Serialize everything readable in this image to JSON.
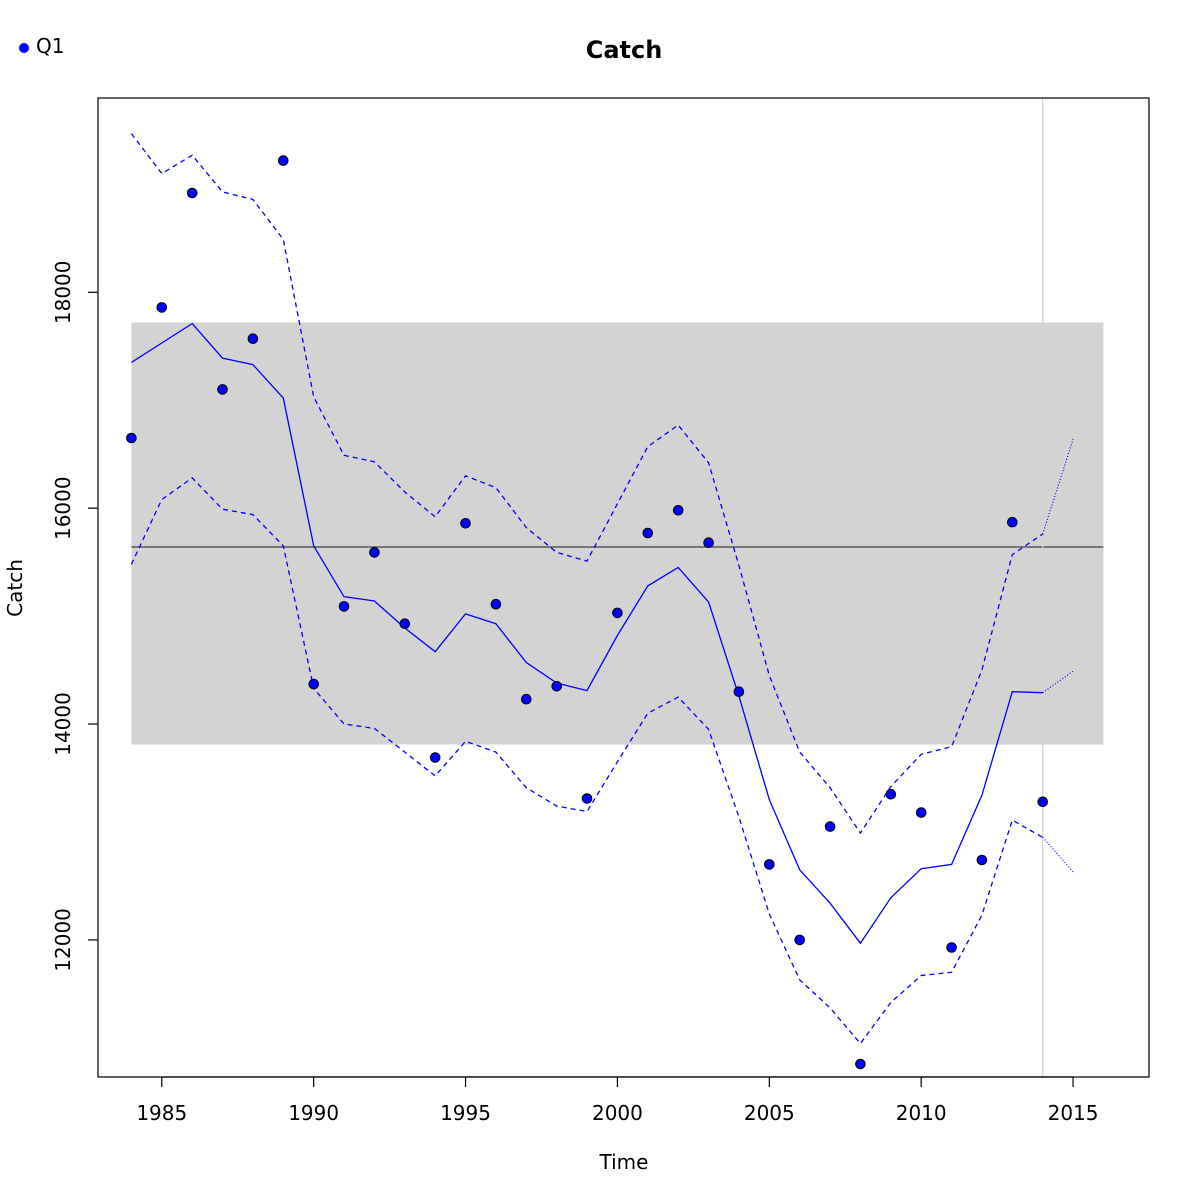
{
  "chart_data": {
    "type": "line",
    "title": "Catch",
    "xlabel": "Time",
    "ylabel": "Catch",
    "xlim": [
      1982.9,
      2017.5
    ],
    "ylim": [
      10730,
      19800
    ],
    "x_ticks": [
      1985,
      1990,
      1995,
      2000,
      2005,
      2010,
      2015
    ],
    "y_ticks": [
      12000,
      14000,
      16000,
      18000
    ],
    "legend": {
      "position": "top-left",
      "entries": [
        {
          "name": "Q1",
          "color": "#0000ff",
          "marker": "filled-circle"
        }
      ]
    },
    "colors": {
      "series": "#0000ff",
      "band": "#d3d3d3",
      "mean_line": "#404040",
      "vline": "#d3d3d3",
      "point_outline": "#000000"
    },
    "reference_band": {
      "x": [
        1984,
        2016
      ],
      "y": [
        13810,
        17720
      ]
    },
    "mean_line": {
      "y": 15640,
      "x": [
        1984,
        2016
      ]
    },
    "vertical_line": {
      "x": 2014
    },
    "series": [
      {
        "name": "Q1",
        "points": {
          "x": [
            1984,
            1985,
            1986,
            1987,
            1988,
            1989,
            1990,
            1991,
            1992,
            1993,
            1994,
            1995,
            1996,
            1997,
            1998,
            1999,
            2000,
            2001,
            2002,
            2003,
            2004,
            2005,
            2006,
            2007,
            2008,
            2009,
            2010,
            2011,
            2012,
            2013,
            2014
          ],
          "y": [
            16650,
            17860,
            18920,
            17100,
            17570,
            19220,
            14370,
            15090,
            15590,
            14930,
            13690,
            15860,
            15110,
            14230,
            14350,
            13310,
            15030,
            15770,
            15980,
            15680,
            14300,
            12700,
            12000,
            13050,
            10850,
            13350,
            13180,
            11930,
            12740,
            15870,
            13280
          ]
        },
        "fit": {
          "x": [
            1984,
            1985,
            1986,
            1987,
            1988,
            1989,
            1990,
            1991,
            1992,
            1993,
            1994,
            1995,
            1996,
            1997,
            1998,
            1999,
            2000,
            2001,
            2002,
            2003,
            2004,
            2005,
            2006,
            2007,
            2008,
            2009,
            2010,
            2011,
            2012,
            2013,
            2014
          ],
          "y": [
            17350,
            17530,
            17710,
            17390,
            17330,
            17020,
            15650,
            15180,
            15140,
            14890,
            14670,
            15020,
            14930,
            14570,
            14380,
            14310,
            14820,
            15280,
            15450,
            15130,
            14260,
            13300,
            12650,
            12340,
            11970,
            12390,
            12660,
            12700,
            13340,
            14300,
            14290
          ]
        },
        "fit_forecast": {
          "x": [
            2014,
            2015
          ],
          "y": [
            14290,
            14490
          ]
        },
        "upper": {
          "x": [
            1984,
            1985,
            1986,
            1987,
            1988,
            1989,
            1990,
            1991,
            1992,
            1993,
            1994,
            1995,
            1996,
            1997,
            1998,
            1999,
            2000,
            2001,
            2002,
            2003,
            2004,
            2005,
            2006,
            2007,
            2008,
            2009,
            2010,
            2011,
            2012,
            2013,
            2014
          ],
          "y": [
            19470,
            19100,
            19270,
            18930,
            18860,
            18490,
            17030,
            16490,
            16430,
            16150,
            15920,
            16300,
            16190,
            15820,
            15590,
            15510,
            16040,
            16570,
            16770,
            16420,
            15470,
            14450,
            13740,
            13410,
            12990,
            13420,
            13720,
            13790,
            14500,
            15570,
            15760
          ]
        },
        "upper_forecast": {
          "x": [
            2014,
            2015
          ],
          "y": [
            15760,
            16640
          ]
        },
        "lower": {
          "x": [
            1984,
            1985,
            1986,
            1987,
            1988,
            1989,
            1990,
            1991,
            1992,
            1993,
            1994,
            1995,
            1996,
            1997,
            1998,
            1999,
            2000,
            2001,
            2002,
            2003,
            2004,
            2005,
            2006,
            2007,
            2008,
            2009,
            2010,
            2011,
            2012,
            2013,
            2014
          ],
          "y": [
            15480,
            16080,
            16280,
            15990,
            15940,
            15650,
            14330,
            14000,
            13960,
            13740,
            13520,
            13840,
            13740,
            13410,
            13240,
            13190,
            13650,
            14100,
            14250,
            13950,
            13140,
            12240,
            11630,
            11370,
            11040,
            11420,
            11670,
            11700,
            12230,
            13110,
            12950
          ]
        },
        "lower_forecast": {
          "x": [
            2014,
            2015
          ],
          "y": [
            12950,
            12630
          ]
        }
      }
    ]
  }
}
